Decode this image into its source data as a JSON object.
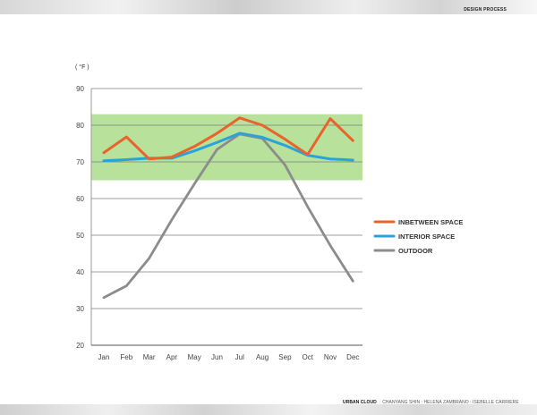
{
  "header": {
    "section_label": "DESIGN PROCESS"
  },
  "footer": {
    "project": "URBAN CLOUD",
    "separator": ":",
    "authors": "CHANYANG SHIN : HELENA ZAMBRANO : ISEBELLE CARRIERE"
  },
  "chart_data": {
    "type": "line",
    "unit_label": "( °F )",
    "categories": [
      "Jan",
      "Feb",
      "Mar",
      "Apr",
      "May",
      "Jun",
      "Jul",
      "Aug",
      "Sep",
      "Oct",
      "Nov",
      "Dec"
    ],
    "ylim": [
      20,
      90
    ],
    "yticks": [
      20,
      30,
      40,
      50,
      60,
      70,
      80,
      90
    ],
    "grid": true,
    "comfort_band": {
      "range": [
        65,
        83
      ],
      "color": "#b8e19c"
    },
    "legend_position": "right",
    "series": [
      {
        "name": "INBETWEEN SPACE",
        "color": "#e8642c",
        "values": [
          72.5,
          76.8,
          70.8,
          71.3,
          74.2,
          77.8,
          82.0,
          80.0,
          76.2,
          72.0,
          81.8,
          75.8
        ]
      },
      {
        "name": "INTERIOR SPACE",
        "color": "#2ba3d8",
        "values": [
          70.3,
          70.6,
          71.0,
          71.0,
          73.0,
          75.3,
          77.8,
          76.7,
          74.5,
          71.8,
          70.8,
          70.5
        ]
      },
      {
        "name": "OUTDOOR",
        "color": "#8c8c8c",
        "values": [
          33.0,
          36.2,
          43.7,
          54.2,
          64.0,
          73.4,
          77.6,
          76.4,
          69.2,
          57.8,
          47.2,
          37.5
        ]
      }
    ]
  }
}
